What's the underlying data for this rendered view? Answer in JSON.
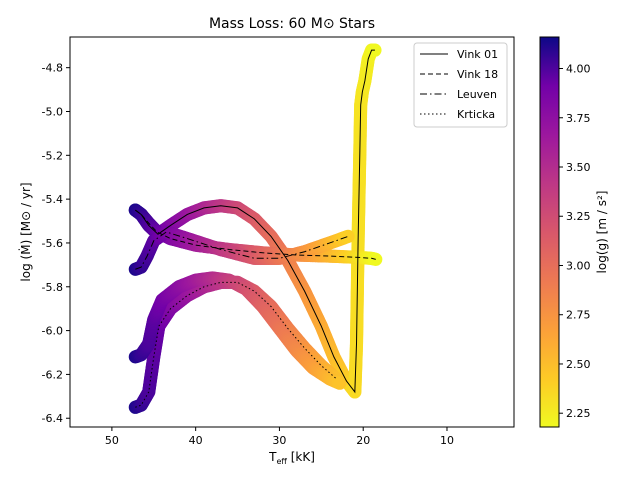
{
  "chart_data": {
    "type": "scatter",
    "title": "Mass Loss: 60 M⊙ Stars",
    "xlabel_main": "T",
    "xlabel_sub": "eff",
    "xlabel_unit": " [kK]",
    "ylabel": "log (Ṁ) [M⊙ / yr]",
    "xlim": [
      55,
      2
    ],
    "ylim": [
      -6.44,
      -4.66
    ],
    "x_inverted": true,
    "xticks": [
      50,
      40,
      30,
      20,
      10
    ],
    "yticks": [
      -6.4,
      -6.2,
      -6.0,
      -5.8,
      -5.6,
      -5.4,
      -5.2,
      -5.0,
      -4.8
    ],
    "legend_position": "top-right",
    "colorbar": {
      "label": "log(g) [m / s²]",
      "colormap": "plasma (reversed)",
      "range": [
        2.18,
        4.16
      ],
      "ticks": [
        2.25,
        2.5,
        2.75,
        3.0,
        3.25,
        3.5,
        3.75,
        4.0
      ],
      "tick_labels": [
        "2.25",
        "2.50",
        "2.75",
        "3.00",
        "3.25",
        "3.50",
        "3.75",
        "4.00"
      ]
    },
    "series": [
      {
        "name": "Vink 01",
        "line_style": "solid",
        "points": [
          [
            47.2,
            -5.45
          ],
          [
            46.5,
            -5.47
          ],
          [
            45.6,
            -5.52
          ],
          [
            44.5,
            -5.56
          ],
          [
            43,
            -5.52
          ],
          [
            41,
            -5.47
          ],
          [
            39,
            -5.44
          ],
          [
            37,
            -5.43
          ],
          [
            35,
            -5.44
          ],
          [
            33,
            -5.49
          ],
          [
            31,
            -5.57
          ],
          [
            29,
            -5.68
          ],
          [
            27,
            -5.82
          ],
          [
            25,
            -5.98
          ],
          [
            23.5,
            -6.12
          ],
          [
            22,
            -6.23
          ],
          [
            21,
            -6.28
          ],
          [
            20.8,
            -6.06
          ],
          [
            20.6,
            -5.57
          ],
          [
            20.4,
            -5.18
          ],
          [
            20.3,
            -4.97
          ],
          [
            20.1,
            -4.91
          ],
          [
            19.8,
            -4.86
          ],
          [
            19.4,
            -4.76
          ],
          [
            19.0,
            -4.72
          ],
          [
            18.6,
            -4.72
          ]
        ]
      },
      {
        "name": "Vink 18",
        "line_style": "dashed",
        "points": [
          [
            47.2,
            -5.45
          ],
          [
            46.5,
            -5.47
          ],
          [
            45.6,
            -5.51
          ],
          [
            44.6,
            -5.55
          ],
          [
            43,
            -5.58
          ],
          [
            40,
            -5.61
          ],
          [
            36,
            -5.63
          ],
          [
            32,
            -5.645
          ],
          [
            28,
            -5.655
          ],
          [
            24,
            -5.66
          ],
          [
            21,
            -5.665
          ],
          [
            19,
            -5.67
          ],
          [
            18.5,
            -5.675
          ]
        ]
      },
      {
        "name": "Leuven",
        "line_style": "dashdot",
        "points": [
          [
            47.2,
            -5.72
          ],
          [
            46.5,
            -5.71
          ],
          [
            45.8,
            -5.66
          ],
          [
            45.0,
            -5.59
          ],
          [
            43.5,
            -5.55
          ],
          [
            41,
            -5.58
          ],
          [
            37,
            -5.63
          ],
          [
            33,
            -5.67
          ],
          [
            30,
            -5.67
          ],
          [
            27,
            -5.64
          ],
          [
            24,
            -5.6
          ],
          [
            21.8,
            -5.57
          ]
        ]
      },
      {
        "name": "Krticka",
        "line_style": "dotted",
        "points": [
          [
            47.2,
            -6.35
          ],
          [
            46.5,
            -6.34
          ],
          [
            45.6,
            -6.28
          ],
          [
            45.0,
            -6.12
          ],
          [
            44.4,
            -5.98
          ],
          [
            43,
            -5.9
          ],
          [
            41,
            -5.84
          ],
          [
            39,
            -5.8
          ],
          [
            37,
            -5.78
          ],
          [
            35,
            -5.78
          ],
          [
            33,
            -5.82
          ],
          [
            31,
            -5.89
          ],
          [
            29,
            -5.99
          ],
          [
            27,
            -6.08
          ],
          [
            25,
            -6.16
          ],
          [
            23.2,
            -6.22
          ]
        ]
      },
      {
        "name": "",
        "line_style": "none",
        "points": [
          [
            47.2,
            -6.12
          ],
          [
            46.5,
            -6.11
          ],
          [
            45.6,
            -6.06
          ],
          [
            45.0,
            -5.95
          ],
          [
            44,
            -5.86
          ],
          [
            42,
            -5.8
          ],
          [
            40,
            -5.77
          ],
          [
            38,
            -5.76
          ],
          [
            36,
            -5.77
          ],
          [
            34,
            -5.81
          ],
          [
            32,
            -5.89
          ],
          [
            30,
            -5.99
          ],
          [
            28,
            -6.09
          ],
          [
            26,
            -6.17
          ],
          [
            24,
            -6.22
          ],
          [
            22.8,
            -6.24
          ]
        ]
      }
    ]
  }
}
